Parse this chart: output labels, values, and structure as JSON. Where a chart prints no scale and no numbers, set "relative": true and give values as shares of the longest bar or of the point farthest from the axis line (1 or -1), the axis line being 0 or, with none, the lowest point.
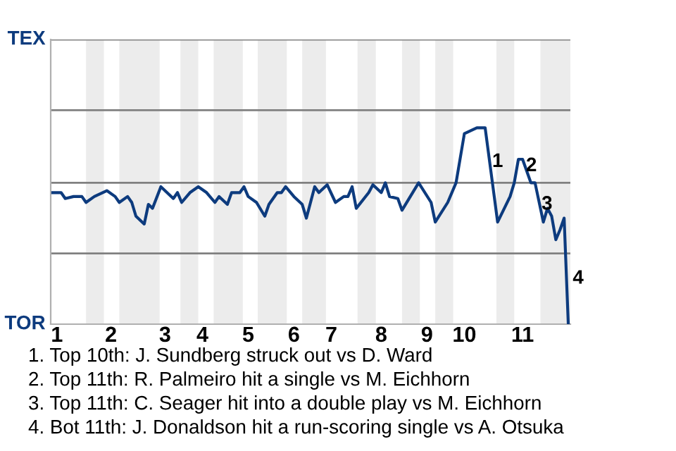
{
  "chart_data": {
    "type": "line",
    "relative": true,
    "categories": [
      null,
      "1",
      null,
      null,
      null,
      null,
      null,
      null,
      null,
      null,
      null,
      null,
      null,
      null,
      "2",
      null,
      null,
      null,
      null,
      null,
      null,
      null,
      null,
      null,
      null,
      null,
      null,
      "3",
      null,
      null,
      null,
      null,
      null,
      null,
      null,
      null,
      "4",
      null,
      null,
      null,
      null,
      null,
      null,
      null,
      null,
      null,
      null,
      "5",
      null,
      null,
      null,
      null,
      null,
      null,
      null,
      null,
      null,
      null,
      "6",
      null,
      null,
      null,
      null,
      null,
      null,
      null,
      null,
      "7",
      null,
      null,
      null,
      null,
      null,
      null,
      null,
      null,
      null,
      null,
      null,
      "8",
      null,
      null,
      null,
      null,
      null,
      null,
      null,
      null,
      null,
      null,
      "9",
      null,
      null,
      null,
      null,
      null,
      null,
      null,
      null,
      "10",
      null,
      null,
      null,
      null,
      null,
      null,
      null,
      null,
      null,
      null,
      null,
      null,
      null,
      "11",
      null,
      null,
      null,
      null,
      null,
      null,
      null,
      null,
      null,
      null,
      null
    ],
    "series": [
      {
        "color": "#0d3b7e",
        "values": [
          0.67,
          null,
          0.67,
          0.64,
          null,
          0.65,
          null,
          0.65,
          0.62,
          null,
          0.65,
          null,
          null,
          0.68,
          null,
          0.65,
          0.62,
          null,
          0.65,
          0.62,
          0.55,
          null,
          0.51,
          0.61,
          0.59,
          null,
          0.7,
          null,
          null,
          0.64,
          0.67,
          0.62,
          null,
          0.67,
          null,
          0.7,
          null,
          0.67,
          null,
          0.62,
          0.65,
          null,
          0.61,
          0.67,
          null,
          0.67,
          0.7,
          0.65,
          null,
          0.62,
          null,
          0.55,
          0.61,
          null,
          0.67,
          0.67,
          0.7,
          null,
          0.65,
          null,
          0.61,
          0.54,
          null,
          0.7,
          0.67,
          null,
          0.71,
          null,
          0.62,
          null,
          0.65,
          0.65,
          0.7,
          0.59,
          null,
          null,
          0.67,
          0.71,
          null,
          0.67,
          0.72,
          0.65,
          null,
          0.64,
          0.58,
          null,
          null,
          null,
          0.72,
          null,
          null,
          0.62,
          0.52,
          null,
          null,
          0.62,
          null,
          0.72,
          null,
          0.97,
          null,
          0.99,
          1,
          null,
          1,
          null,
          null,
          0.52,
          null,
          null,
          0.65,
          0.72,
          0.84,
          0.84,
          null,
          0.72,
          0.72,
          null,
          0.52,
          0.59,
          0.55,
          0.43,
          0.48,
          0.54,
          0
        ]
      }
    ],
    "ref_lines": [
      {
        "axis": "y",
        "value": 0.36,
        "color": "#808080"
      },
      {
        "axis": "y",
        "value": 0.72,
        "color": "#808080"
      },
      {
        "axis": "y",
        "value": 1.09,
        "color": "#808080"
      },
      {
        "axis": "y",
        "value": 1.45,
        "color": "#808080"
      }
    ],
    "annotations": [
      "TEX",
      "TOR",
      "1",
      "2",
      "3",
      "4",
      "1. Top 10th: J. Sundberg struck out vs D. Ward",
      "2. Top 11th: R. Palmeiro hit a single vs M. Eichhorn",
      "3. Top 11th: C. Seager hit into a double play vs M. Eichhorn",
      "4. Bot 11th: J. Donaldson hit a run-scoring single vs A. Otsuka"
    ]
  }
}
